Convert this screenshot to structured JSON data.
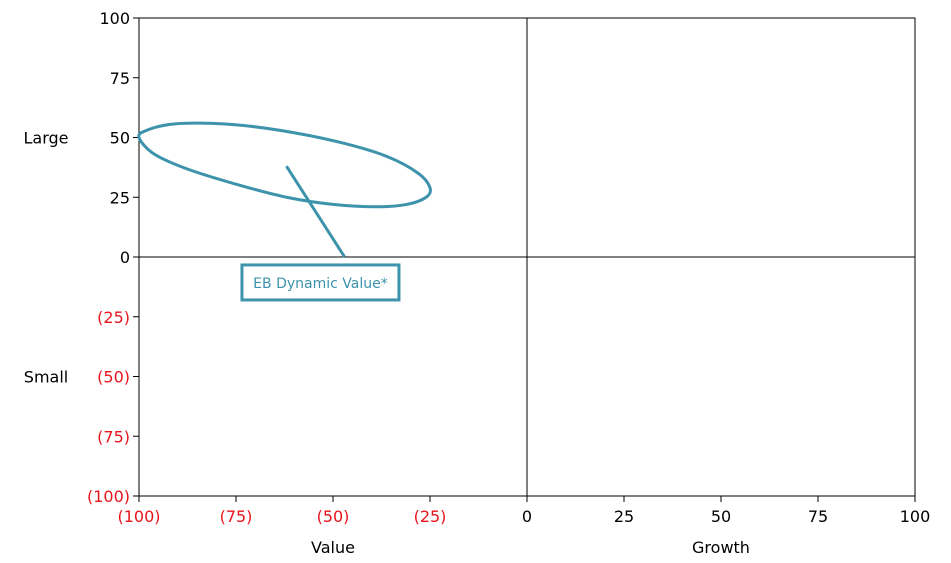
{
  "chart_data": {
    "type": "scatter",
    "title": "",
    "xlabel": "",
    "ylabel": "",
    "xlim": [
      -100,
      100
    ],
    "ylim": [
      -100,
      100
    ],
    "grid": false,
    "x_ticks": [
      -100,
      -75,
      -50,
      -25,
      0,
      25,
      50,
      75,
      100
    ],
    "y_ticks": [
      100,
      75,
      50,
      25,
      0,
      -25,
      -50,
      -75,
      -100
    ],
    "x_tick_labels": [
      "(100)",
      "(75)",
      "(50)",
      "(25)",
      "0",
      "25",
      "50",
      "75",
      "100"
    ],
    "y_tick_labels": [
      "100",
      "75",
      "50",
      "25",
      "0",
      "(25)",
      "(50)",
      "(75)",
      "(100)"
    ],
    "x_category_labels": [
      {
        "text": "Value",
        "x": -50
      },
      {
        "text": "Growth",
        "x": 50
      }
    ],
    "y_category_labels": [
      {
        "text": "Large",
        "y": 50
      },
      {
        "text": "Small",
        "y": -50
      }
    ],
    "ellipse": {
      "points": [
        [
          -100,
          50
        ],
        [
          -98,
          53
        ],
        [
          -92,
          55.5
        ],
        [
          -84,
          56
        ],
        [
          -73,
          55
        ],
        [
          -60,
          52
        ],
        [
          -47,
          47.5
        ],
        [
          -36,
          42
        ],
        [
          -28,
          35
        ],
        [
          -25,
          29
        ],
        [
          -26,
          25
        ],
        [
          -31,
          22
        ],
        [
          -39,
          21
        ],
        [
          -50,
          22
        ],
        [
          -62,
          25
        ],
        [
          -74,
          30
        ],
        [
          -87,
          36.5
        ],
        [
          -96,
          43
        ]
      ],
      "color": "#3d93ac"
    },
    "annotation": {
      "text": "EB Dynamic Value*",
      "box_x": -33,
      "box_y": -5,
      "pointer_from": [
        -47,
        0
      ],
      "pointer_to": [
        -62,
        38
      ],
      "color": "#3d93ac"
    },
    "negative_label_color": "#e8141c"
  }
}
